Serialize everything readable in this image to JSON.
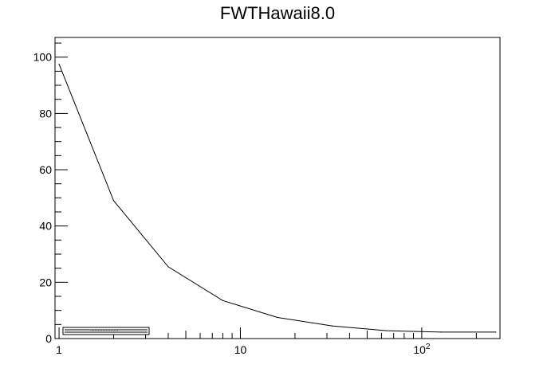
{
  "chart_data": {
    "type": "line",
    "title": "FWTHawaii8.0",
    "xlabel": "",
    "ylabel": "",
    "x_scale": "log",
    "xlim": [
      0.95,
      270
    ],
    "ylim": [
      0,
      107
    ],
    "grid": false,
    "x_tick_labels": [
      {
        "value": 1,
        "base": "1",
        "exp": ""
      },
      {
        "value": 10,
        "base": "10",
        "exp": ""
      },
      {
        "value": 100,
        "base": "10",
        "exp": "2"
      }
    ],
    "y_ticks": [
      0,
      20,
      40,
      60,
      80,
      100
    ],
    "series": [
      {
        "x": [
          1,
          2,
          4,
          8,
          16,
          32,
          64,
          128,
          256
        ],
        "y": [
          97.5,
          49,
          25.5,
          13.5,
          7.5,
          4.5,
          2.8,
          2.3,
          2.3
        ],
        "color": "#000000"
      }
    ],
    "legend_box": {
      "placement": "bottom-left",
      "entries": [
        "",
        ""
      ]
    }
  }
}
